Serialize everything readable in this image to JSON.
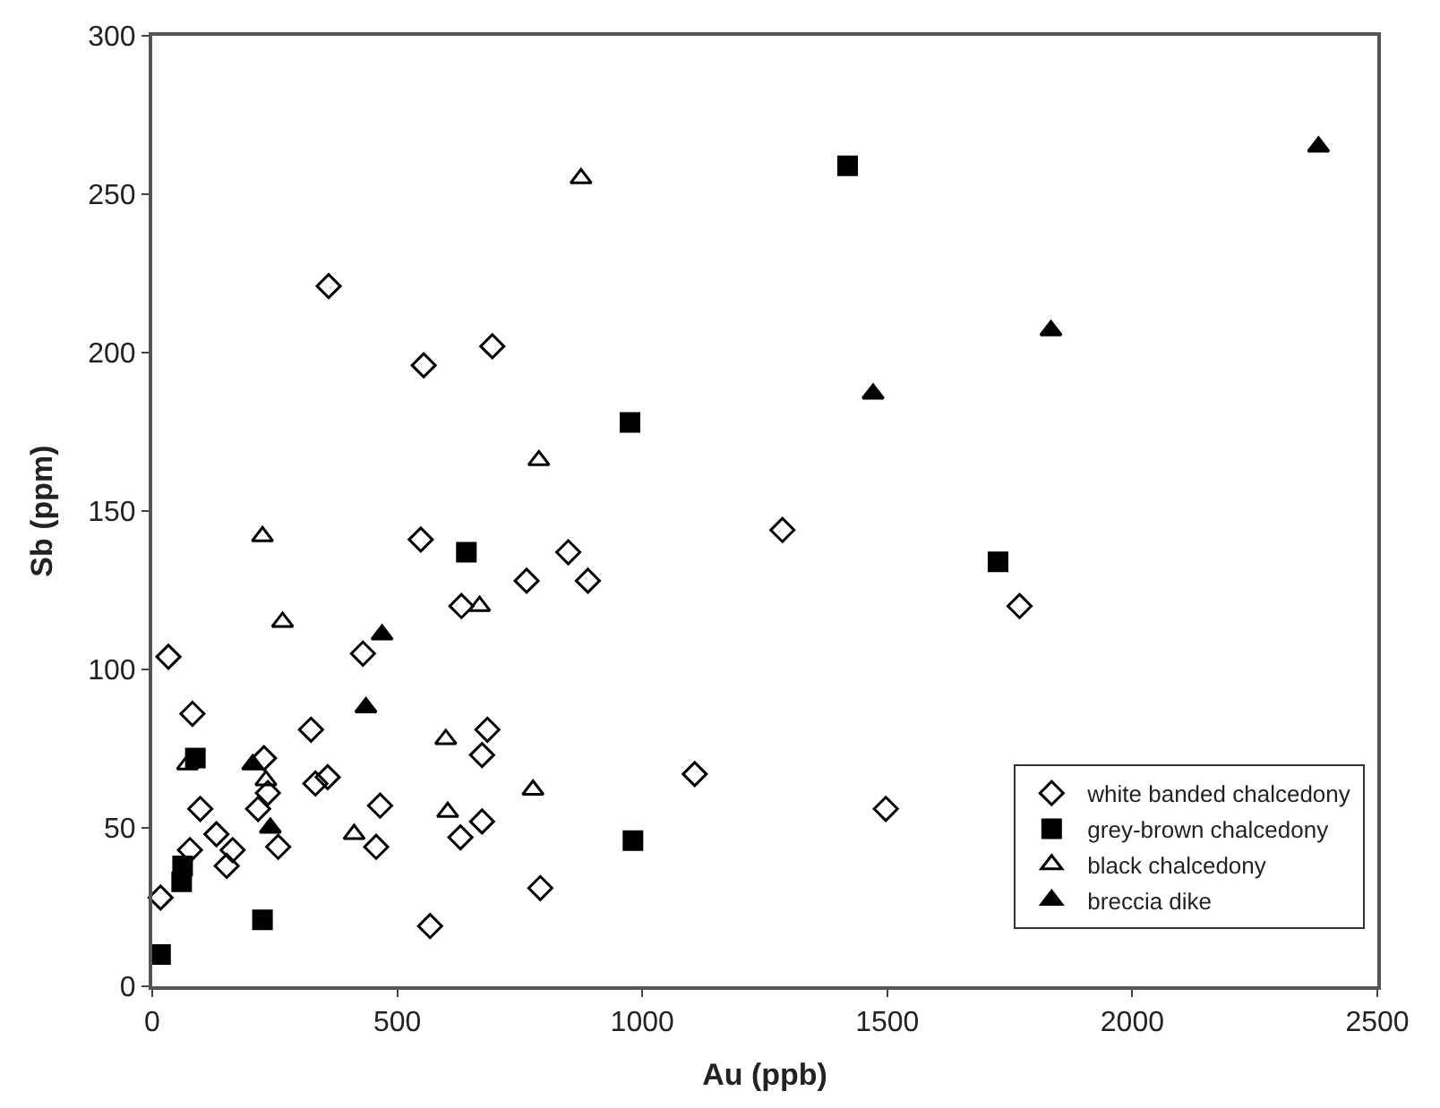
{
  "chart_data": {
    "type": "scatter",
    "xlabel": "Au (ppb)",
    "ylabel": "Sb (ppm)",
    "xlim": [
      0,
      2500
    ],
    "xticks": [
      0,
      500,
      1000,
      1500,
      2000,
      2500
    ],
    "ylim": [
      0,
      300
    ],
    "yticks": [
      0,
      50,
      100,
      150,
      200,
      250,
      300
    ],
    "legend": "bottom right",
    "series": [
      {
        "name": "white banded chalcedony",
        "color": "#000000",
        "marker": "diamond-open",
        "x": [
          548,
          849,
          764,
          889,
          631,
          33,
          430,
          82,
          324,
          684,
          228,
          673,
          236,
          333,
          358,
          216,
          465,
          98,
          131,
          164,
          152,
          257,
          457,
          629,
          673,
          77,
          17,
          567,
          792,
          360,
          554,
          694,
          1286,
          1107,
          1497,
          1770
        ],
        "values": [
          141,
          137,
          128,
          128,
          120,
          104,
          105,
          86,
          81,
          81,
          72,
          73,
          61,
          64,
          66,
          56,
          57,
          56,
          48,
          43,
          38,
          44,
          44,
          47,
          52,
          43,
          28,
          19,
          31,
          221,
          196,
          202,
          144,
          67,
          56,
          120
        ]
      },
      {
        "name": "grey-brown chalcedony",
        "color": "#000000",
        "marker": "square",
        "x": [
          641,
          88,
          62,
          60,
          225,
          17,
          981,
          1726,
          1419,
          975
        ],
        "values": [
          137,
          72,
          38,
          33,
          21,
          10,
          46,
          134,
          259,
          178
        ]
      },
      {
        "name": "black chalcedony",
        "color": "#000000",
        "marker": "triangle-open",
        "x": [
          875,
          789,
          225,
          266,
          668,
          599,
          777,
          603,
          412,
          232,
          72
        ],
        "values": [
          255,
          166,
          142,
          115,
          120,
          78,
          62,
          55,
          48,
          65,
          70
        ]
      },
      {
        "name": "breccia dike",
        "color": "#000000",
        "marker": "triangle",
        "x": [
          469,
          436,
          205,
          241,
          2380,
          1834,
          1471
        ],
        "values": [
          111,
          88,
          70,
          50,
          265,
          207,
          187
        ]
      }
    ]
  }
}
